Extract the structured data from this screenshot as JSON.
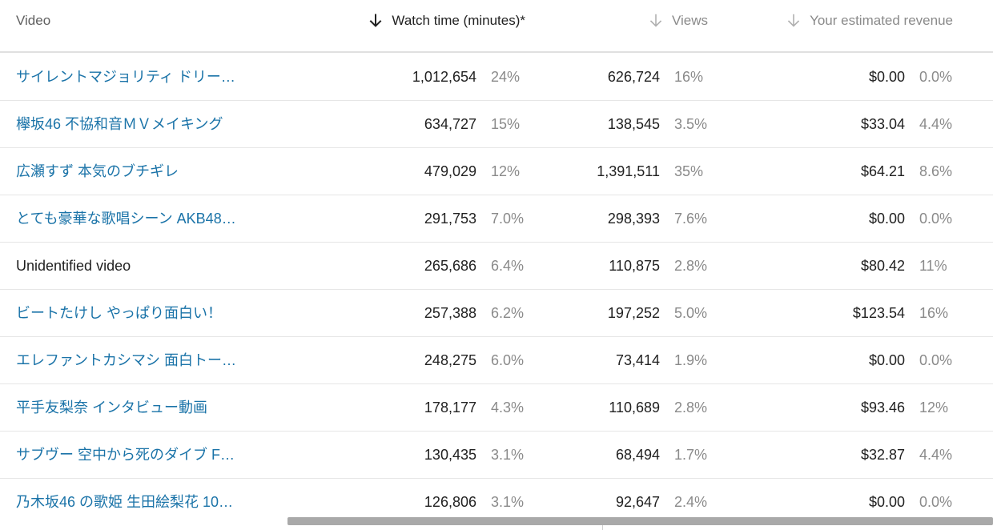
{
  "header": {
    "video": "Video",
    "watch_time": "Watch time (minutes)*",
    "views": "Views",
    "revenue": "Your estimated revenue"
  },
  "rows": [
    {
      "title": "サイレントマジョリティ ドリー…",
      "watch": "1,012,654",
      "watch_pct": "24%",
      "views": "626,724",
      "views_pct": "16%",
      "revenue": "$0.00",
      "revenue_pct": "0.0%"
    },
    {
      "title": "欅坂46 不協和音ＭＶメイキング",
      "watch": "634,727",
      "watch_pct": "15%",
      "views": "138,545",
      "views_pct": "3.5%",
      "revenue": "$33.04",
      "revenue_pct": "4.4%"
    },
    {
      "title": "広瀬すず 本気のブチギレ",
      "watch": "479,029",
      "watch_pct": "12%",
      "views": "1,391,511",
      "views_pct": "35%",
      "revenue": "$64.21",
      "revenue_pct": "8.6%"
    },
    {
      "title": "とても豪華な歌唱シーン AKB48…",
      "watch": "291,753",
      "watch_pct": "7.0%",
      "views": "298,393",
      "views_pct": "7.6%",
      "revenue": "$0.00",
      "revenue_pct": "0.0%"
    },
    {
      "title": "Unidentified video",
      "watch": "265,686",
      "watch_pct": "6.4%",
      "views": "110,875",
      "views_pct": "2.8%",
      "revenue": "$80.42",
      "revenue_pct": "11%"
    },
    {
      "title": "ビートたけし やっぱり面白い！",
      "watch": "257,388",
      "watch_pct": "6.2%",
      "views": "197,252",
      "views_pct": "5.0%",
      "revenue": "$123.54",
      "revenue_pct": "16%"
    },
    {
      "title": "エレファントカシマシ 面白トー…",
      "watch": "248,275",
      "watch_pct": "6.0%",
      "views": "73,414",
      "views_pct": "1.9%",
      "revenue": "$0.00",
      "revenue_pct": "0.0%"
    },
    {
      "title": "平手友梨奈 インタビュー動画",
      "watch": "178,177",
      "watch_pct": "4.3%",
      "views": "110,689",
      "views_pct": "2.8%",
      "revenue": "$93.46",
      "revenue_pct": "12%"
    },
    {
      "title": "サブヴー 空中から死のダイブ F…",
      "watch": "130,435",
      "watch_pct": "3.1%",
      "views": "68,494",
      "views_pct": "1.7%",
      "revenue": "$32.87",
      "revenue_pct": "4.4%"
    },
    {
      "title": "乃木坂46 の歌姫 生田絵梨花 10…",
      "watch": "126,806",
      "watch_pct": "3.1%",
      "views": "92,647",
      "views_pct": "2.4%",
      "revenue": "$0.00",
      "revenue_pct": "0.0%"
    }
  ],
  "icons": {
    "sort_active": "arrow-down-icon",
    "sort_inactive": "arrow-down-icon"
  },
  "colors": {
    "link": "#1a73a8",
    "muted": "#8a8a8a",
    "text": "#212121"
  }
}
